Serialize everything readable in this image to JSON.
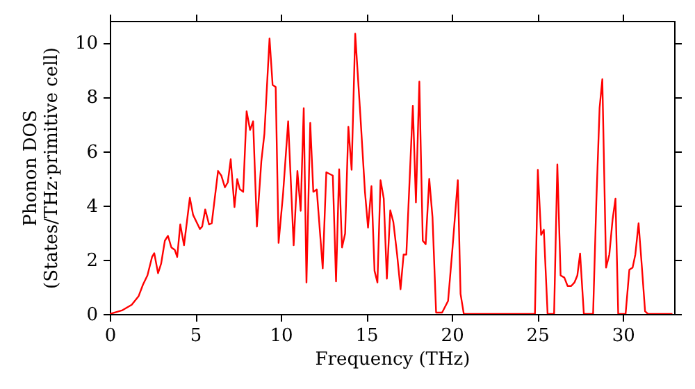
{
  "chart_data": {
    "type": "line",
    "xlabel": "Frequency (THz)",
    "ylabel": "Phonon DOS\n(States/THz·primitive cell)",
    "x": [
      0,
      0.74,
      1.28,
      1.68,
      1.94,
      2.2,
      2.47,
      2.6,
      2.82,
      3.0,
      3.22,
      3.4,
      3.6,
      3.8,
      3.94,
      4.12,
      4.34,
      4.68,
      4.87,
      5.27,
      5.4,
      5.58,
      5.8,
      5.96,
      6.33,
      6.52,
      6.73,
      6.9,
      7.07,
      7.29,
      7.45,
      7.6,
      7.8,
      8.0,
      8.2,
      8.38,
      8.6,
      8.86,
      9.04,
      9.34,
      9.52,
      9.7,
      9.87,
      10.13,
      10.43,
      10.75,
      10.97,
      11.16,
      11.34,
      11.5,
      11.72,
      11.9,
      12.1,
      12.45,
      12.66,
      13.04,
      13.23,
      13.41,
      13.58,
      13.76,
      13.95,
      14.14,
      14.35,
      14.65,
      14.92,
      15.1,
      15.3,
      15.48,
      15.65,
      15.83,
      16.02,
      16.2,
      16.4,
      16.58,
      16.8,
      17.0,
      17.18,
      17.34,
      17.72,
      17.9,
      18.1,
      18.3,
      18.47,
      18.68,
      18.87,
      19.08,
      19.43,
      19.78,
      20.03,
      20.35,
      20.51,
      20.7,
      24.86,
      25.03,
      25.22,
      25.38,
      25.6,
      25.98,
      26.17,
      26.36,
      26.58,
      26.77,
      26.98,
      27.17,
      27.34,
      27.5,
      27.72,
      28.26,
      28.45,
      28.64,
      28.8,
      29.02,
      29.21,
      29.4,
      29.57,
      29.73,
      30.16,
      30.38,
      30.57,
      30.73,
      30.92,
      31.11,
      31.3,
      31.47,
      32.9
    ],
    "series": [
      {
        "color": "#ff0000",
        "values": [
          0,
          0.14,
          0.34,
          0.65,
          1.08,
          1.42,
          2.1,
          2.24,
          1.5,
          1.85,
          2.7,
          2.88,
          2.45,
          2.36,
          2.1,
          3.3,
          2.53,
          4.28,
          3.65,
          3.13,
          3.22,
          3.85,
          3.3,
          3.34,
          5.27,
          5.1,
          4.67,
          4.85,
          5.7,
          3.94,
          4.97,
          4.6,
          4.5,
          7.47,
          6.78,
          7.1,
          3.22,
          5.62,
          6.64,
          10.15,
          8.44,
          8.36,
          2.62,
          4.42,
          7.1,
          2.53,
          5.27,
          3.8,
          7.58,
          1.16,
          7.04,
          4.5,
          4.59,
          1.68,
          5.22,
          5.1,
          1.2,
          5.33,
          2.45,
          2.96,
          6.9,
          5.31,
          10.33,
          7.33,
          4.5,
          3.18,
          4.71,
          1.59,
          1.16,
          4.93,
          4.25,
          1.3,
          3.82,
          3.39,
          2.19,
          0.91,
          2.19,
          2.19,
          7.67,
          4.11,
          8.56,
          2.7,
          2.57,
          4.98,
          3.56,
          0.05,
          0.05,
          0.48,
          2.36,
          4.93,
          0.74,
          0,
          0,
          5.31,
          2.91,
          3.1,
          0,
          0,
          5.51,
          1.42,
          1.34,
          1.03,
          1.03,
          1.16,
          1.42,
          2.23,
          0,
          0,
          4.13,
          7.59,
          8.65,
          1.71,
          2.19,
          3.48,
          4.25,
          0,
          0,
          1.63,
          1.71,
          2.19,
          3.34,
          1.76,
          0.1,
          0,
          0
        ]
      }
    ],
    "xlim": [
      0,
      33
    ],
    "xticks": [
      0,
      5,
      10,
      15,
      20,
      25,
      30
    ],
    "ylim": [
      0,
      10.8
    ],
    "yticks": [
      0,
      2,
      4,
      6,
      8,
      10
    ],
    "grid": false,
    "marker": "none",
    "line_style": "solid"
  }
}
